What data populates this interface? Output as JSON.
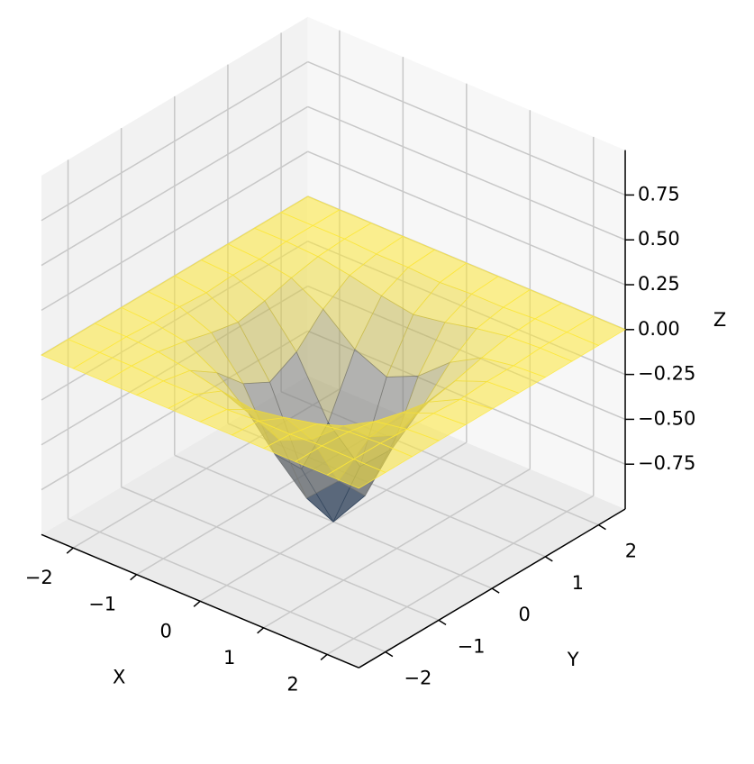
{
  "chart_data": {
    "type": "surface3d",
    "xlabel": "X",
    "ylabel": "Y",
    "zlabel": "Z",
    "xlim": [
      -2.5,
      2.5
    ],
    "ylim": [
      -2.5,
      2.5
    ],
    "zlim": [
      -1,
      1
    ],
    "xticks": [
      {
        "value": -2,
        "label": "−2"
      },
      {
        "value": -1,
        "label": "−1"
      },
      0,
      1,
      2
    ],
    "yticks": [
      {
        "value": -2,
        "label": "−2"
      },
      {
        "value": -1,
        "label": "−1"
      },
      0,
      1,
      2
    ],
    "zticks": [
      {
        "value": -0.75,
        "label": "−0.75"
      },
      {
        "value": -0.5,
        "label": "−0.50"
      },
      {
        "value": -0.25,
        "label": "−0.25"
      },
      {
        "value": 0,
        "label": "0.00"
      },
      0.25,
      {
        "value": 0.5,
        "label": "0.50"
      },
      0.75
    ],
    "grid": true,
    "colormap": [
      "#00224e",
      "#7d7c78",
      "#fee838"
    ],
    "alpha": 0.55,
    "x": [
      -2.5,
      -2,
      -1.5,
      -1,
      -0.5,
      0,
      0.5,
      1,
      1.5,
      2,
      2.5
    ],
    "y": [
      -2.5,
      -2,
      -1.5,
      -1,
      -0.5,
      0,
      0.5,
      1,
      1.5,
      2,
      2.5
    ],
    "z": [
      [
        0,
        0,
        0,
        0,
        0,
        0,
        0,
        0,
        0,
        0,
        0
      ],
      [
        0,
        0,
        0,
        -0.01,
        -0.01,
        -0.02,
        -0.01,
        -0.01,
        0,
        0,
        0
      ],
      [
        0,
        0,
        -0.01,
        -0.04,
        -0.08,
        -0.11,
        -0.08,
        -0.04,
        -0.01,
        0,
        0
      ],
      [
        0,
        -0.01,
        -0.04,
        -0.14,
        -0.29,
        -0.37,
        -0.29,
        -0.14,
        -0.04,
        -0.01,
        0
      ],
      [
        0,
        -0.01,
        -0.08,
        -0.29,
        -0.61,
        -0.78,
        -0.61,
        -0.29,
        -0.08,
        -0.01,
        0
      ],
      [
        0,
        -0.02,
        -0.11,
        -0.37,
        -0.78,
        -1,
        -0.78,
        -0.37,
        -0.11,
        -0.02,
        0
      ],
      [
        0,
        -0.01,
        -0.08,
        -0.29,
        -0.61,
        -0.78,
        -0.61,
        -0.29,
        -0.08,
        -0.01,
        0
      ],
      [
        0,
        -0.01,
        -0.04,
        -0.14,
        -0.29,
        -0.37,
        -0.29,
        -0.14,
        -0.04,
        -0.01,
        0
      ],
      [
        0,
        0,
        -0.01,
        -0.04,
        -0.08,
        -0.11,
        -0.08,
        -0.04,
        -0.01,
        0,
        0
      ],
      [
        0,
        0,
        0,
        -0.01,
        -0.01,
        -0.02,
        -0.01,
        -0.01,
        0,
        0,
        0
      ],
      [
        0,
        0,
        0,
        0,
        0,
        0,
        0,
        0,
        0,
        0,
        0
      ]
    ]
  }
}
